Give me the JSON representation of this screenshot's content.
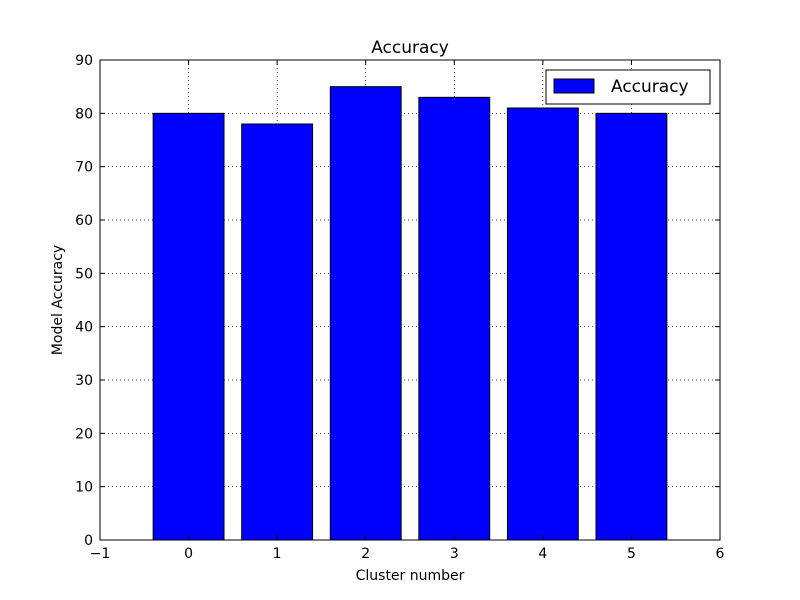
{
  "chart_data": {
    "type": "bar",
    "title": "Accuracy",
    "xlabel": "Cluster number",
    "ylabel": "Model Accuracy",
    "categories": [
      "0",
      "1",
      "2",
      "3",
      "4",
      "5"
    ],
    "x": [
      0,
      1,
      2,
      3,
      4,
      5
    ],
    "series": [
      {
        "name": "Accuracy",
        "values": [
          80,
          78,
          85,
          83,
          81,
          80
        ],
        "color": "#0000ff"
      }
    ],
    "bar_width": 0.8,
    "xlim": [
      -1,
      6
    ],
    "ylim": [
      0,
      90
    ],
    "xticks": [
      -1,
      0,
      1,
      2,
      3,
      4,
      5,
      6
    ],
    "xtick_labels": [
      "−1",
      "0",
      "1",
      "2",
      "3",
      "4",
      "5",
      "6"
    ],
    "yticks": [
      0,
      10,
      20,
      30,
      40,
      50,
      60,
      70,
      80,
      90
    ],
    "ytick_labels": [
      "0",
      "10",
      "20",
      "30",
      "40",
      "50",
      "60",
      "70",
      "80",
      "90"
    ],
    "grid": true,
    "legend": {
      "position": "top-right",
      "entries": [
        "Accuracy"
      ]
    }
  }
}
